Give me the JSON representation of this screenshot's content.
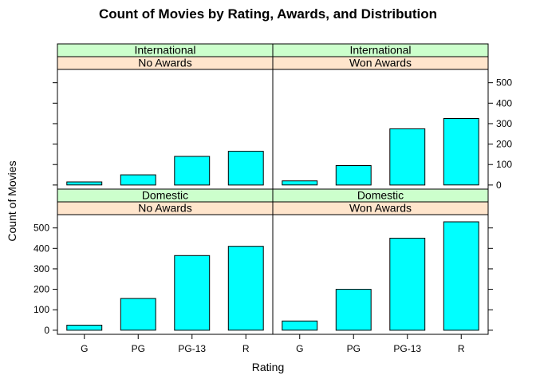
{
  "chart_data": {
    "type": "bar",
    "title": "Count of Movies by Rating, Awards, and Distribution",
    "xlabel": "Rating",
    "ylabel": "Count of Movies",
    "categories": [
      "G",
      "PG",
      "PG-13",
      "R"
    ],
    "ylim": [
      -20,
      565
    ],
    "yticks": [
      0,
      100,
      200,
      300,
      400,
      500
    ],
    "bar_color": "#00ffff",
    "distribution_strip_color": "#ccffcc",
    "awards_strip_color": "#ffe5cc",
    "panels": [
      {
        "distribution": "International",
        "awards": "No Awards",
        "values": [
          15,
          50,
          140,
          165
        ]
      },
      {
        "distribution": "International",
        "awards": "Won Awards",
        "values": [
          20,
          95,
          275,
          325
        ]
      },
      {
        "distribution": "Domestic",
        "awards": "No Awards",
        "values": [
          25,
          155,
          365,
          410
        ]
      },
      {
        "distribution": "Domestic",
        "awards": "Won Awards",
        "values": [
          45,
          200,
          450,
          530
        ]
      }
    ]
  }
}
